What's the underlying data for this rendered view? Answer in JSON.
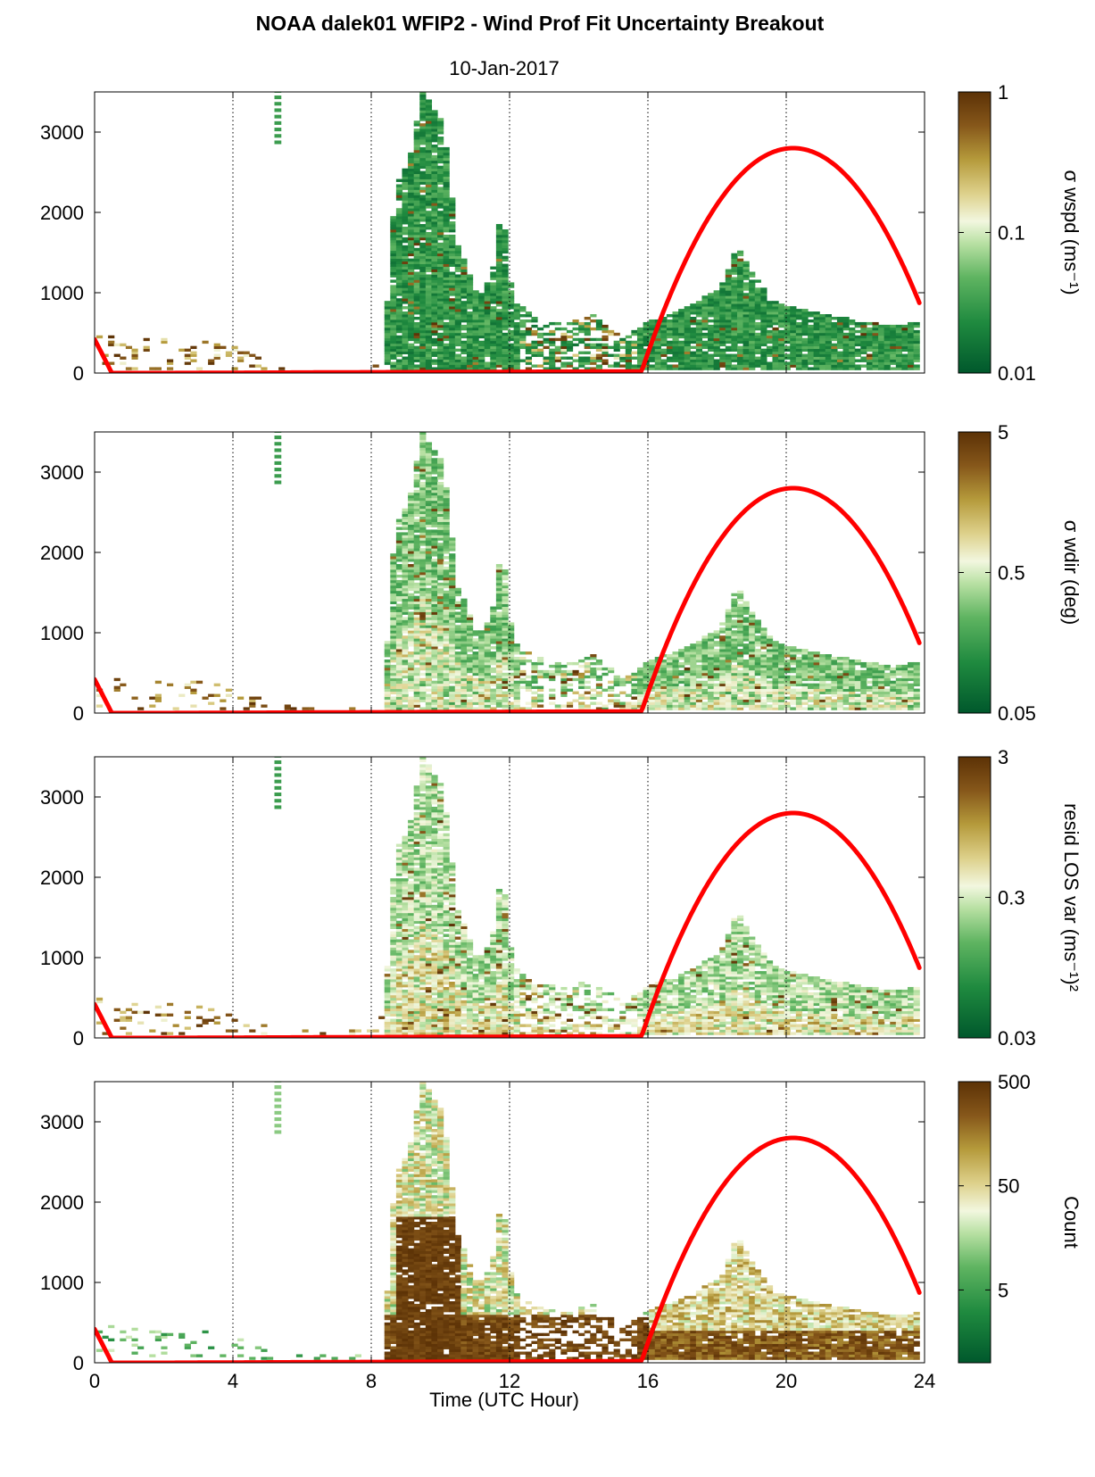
{
  "title": "NOAA dalek01 WFIP2 - Wind Prof Fit Uncertainty Breakout",
  "subtitle": "10-Jan-2017",
  "xlabel": "Time (UTC Hour)",
  "x_ticks": [
    "0",
    "4",
    "8",
    "12",
    "16",
    "20",
    "24"
  ],
  "y_ticks": [
    "0",
    "1000",
    "2000",
    "3000"
  ],
  "colors": {
    "curve": "#ff0000",
    "low": "#006837",
    "mid": "#f4f8e4",
    "high": "#6b3a07"
  },
  "chart_data": [
    {
      "type": "heatmap",
      "panel": "sigma-wspd",
      "colorbar_label": "σ wspd (ms⁻¹)",
      "colorbar_ticks": [
        "1",
        "0.1",
        "0.01"
      ],
      "colorbar_range": [
        0.01,
        1
      ],
      "colorbar_scale": "log",
      "xlim": [
        0,
        24
      ],
      "ylim": [
        0,
        3500
      ],
      "grid": "vertical dotted at 4-hour intervals",
      "curve": {
        "x": [
          0,
          0.5,
          2,
          8,
          15.8,
          16.5,
          18,
          20.2,
          22,
          23.9
        ],
        "y": [
          420,
          0,
          0,
          10,
          20,
          700,
          2050,
          2800,
          2350,
          730
        ]
      }
    },
    {
      "type": "heatmap",
      "panel": "sigma-wdir",
      "colorbar_label": "σ wdir (deg)",
      "colorbar_ticks": [
        "5",
        "0.5",
        "0.05"
      ],
      "colorbar_range": [
        0.05,
        5
      ],
      "colorbar_scale": "log",
      "xlim": [
        0,
        24
      ],
      "ylim": [
        0,
        3500
      ],
      "grid": "vertical dotted at 4-hour intervals",
      "curve": {
        "x": [
          0,
          0.5,
          2,
          8,
          15.8,
          16.5,
          18,
          20.2,
          22,
          23.9
        ],
        "y": [
          420,
          0,
          0,
          10,
          20,
          700,
          2050,
          2800,
          2350,
          730
        ]
      }
    },
    {
      "type": "heatmap",
      "panel": "resid-los-var",
      "colorbar_label": "resid LOS var (ms⁻¹)²",
      "colorbar_ticks": [
        "3",
        "0.3",
        "0.03"
      ],
      "colorbar_range": [
        0.03,
        3
      ],
      "colorbar_scale": "log",
      "xlim": [
        0,
        24
      ],
      "ylim": [
        0,
        3500
      ],
      "grid": "vertical dotted at 4-hour intervals",
      "curve": {
        "x": [
          0,
          0.5,
          2,
          8,
          15.8,
          16.5,
          18,
          20.2,
          22,
          23.9
        ],
        "y": [
          420,
          0,
          0,
          10,
          20,
          700,
          2050,
          2800,
          2350,
          730
        ]
      }
    },
    {
      "type": "heatmap",
      "panel": "count",
      "colorbar_label": "Count",
      "colorbar_ticks": [
        "500",
        "50",
        "5"
      ],
      "colorbar_range": [
        1,
        500
      ],
      "colorbar_scale": "log",
      "xlim": [
        0,
        24
      ],
      "ylim": [
        0,
        3500
      ],
      "grid": "vertical dotted at 4-hour intervals",
      "curve": {
        "x": [
          0,
          0.5,
          2,
          8,
          15.8,
          16.5,
          18,
          20.2,
          22,
          23.9
        ],
        "y": [
          420,
          0,
          0,
          10,
          20,
          700,
          2050,
          2800,
          2350,
          730
        ]
      }
    }
  ]
}
